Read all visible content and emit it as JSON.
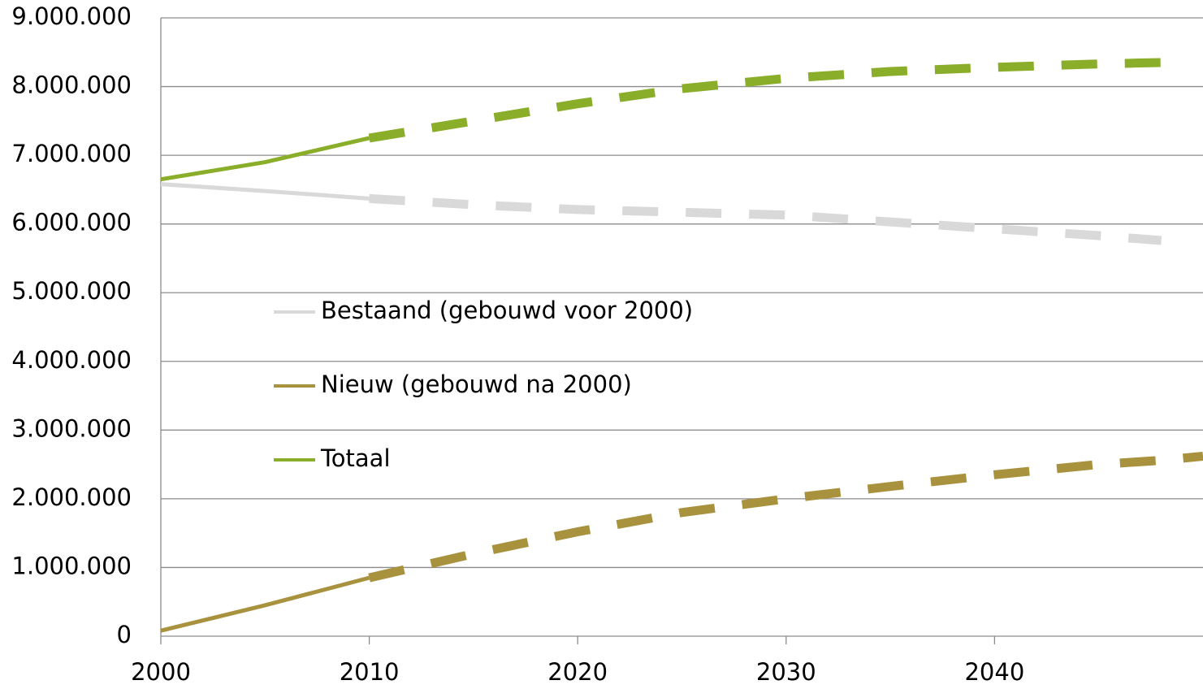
{
  "chart_data": {
    "type": "line",
    "x": [
      2000,
      2005,
      2010,
      2015,
      2020,
      2025,
      2030,
      2035,
      2040,
      2045,
      2048,
      2050
    ],
    "series": [
      {
        "name": "Bestaand (gebouwd voor 2000)",
        "color": "#d9d9d9",
        "values": [
          6580000,
          6480000,
          6370000,
          6280000,
          6210000,
          6170000,
          6130000,
          6030000,
          5930000,
          5830000,
          5760000,
          null
        ]
      },
      {
        "name": "Nieuw (gebouwd na 2000)",
        "color": "#a8923e",
        "values": [
          80000,
          450000,
          850000,
          1200000,
          1520000,
          1800000,
          2000000,
          2180000,
          2350000,
          2500000,
          2560000,
          2620000
        ]
      },
      {
        "name": "Totaal",
        "color": "#8aae2a",
        "values": [
          6650000,
          6900000,
          7250000,
          7500000,
          7750000,
          7970000,
          8120000,
          8220000,
          8280000,
          8330000,
          8350000,
          null
        ]
      }
    ],
    "dashed_from_x": 2010,
    "xlim": [
      2000,
      2050
    ],
    "xticks": [
      2000,
      2010,
      2020,
      2030,
      2040
    ],
    "ylim": [
      0,
      9000000
    ],
    "yticks": [
      {
        "value": 0,
        "label": "0"
      },
      {
        "value": 1000000,
        "label": "1.000.000"
      },
      {
        "value": 2000000,
        "label": "2.000.000"
      },
      {
        "value": 3000000,
        "label": "3.000.000"
      },
      {
        "value": 4000000,
        "label": "4.000.000"
      },
      {
        "value": 5000000,
        "label": "5.000.000"
      },
      {
        "value": 6000000,
        "label": "6.000.000"
      },
      {
        "value": 7000000,
        "label": "7.000.000"
      },
      {
        "value": 8000000,
        "label": "8.000.000"
      },
      {
        "value": 9000000,
        "label": "9.000.000"
      }
    ],
    "grid": true
  }
}
